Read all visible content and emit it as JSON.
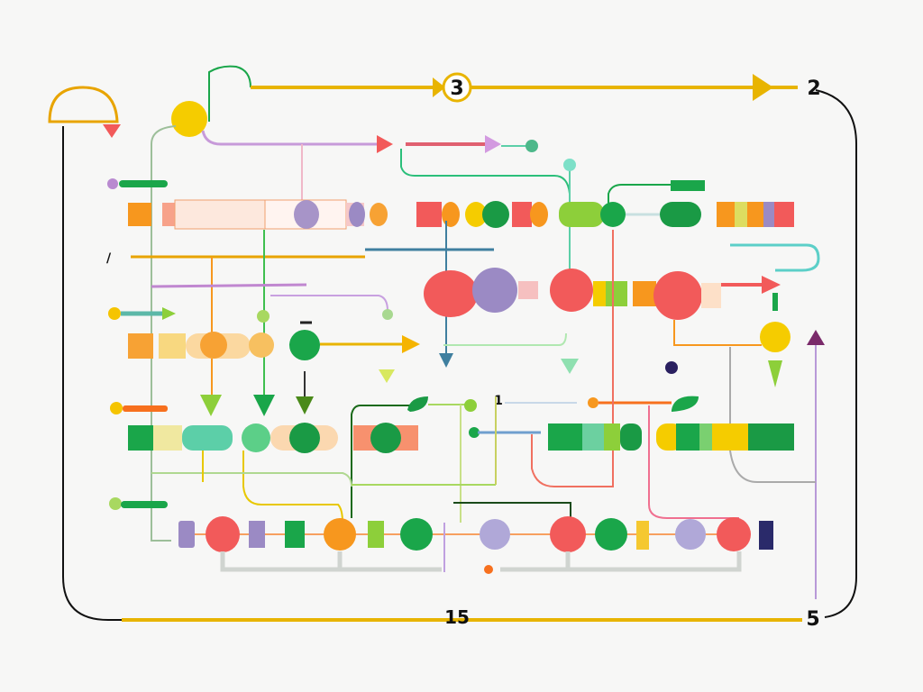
{
  "labels": {
    "top_center": "3",
    "top_right": "2",
    "bottom_center": "15",
    "bottom_right": "5",
    "mid_small": "1"
  },
  "colors": {
    "yellow_line": "#e8b400",
    "red": "#f25a5a",
    "green": "#1aa64a",
    "light_green": "#8dcf3a",
    "purple": "#9b8ac4",
    "orange": "#f7971e",
    "teal": "#5ccfa8",
    "navy": "#2a2a6a"
  }
}
